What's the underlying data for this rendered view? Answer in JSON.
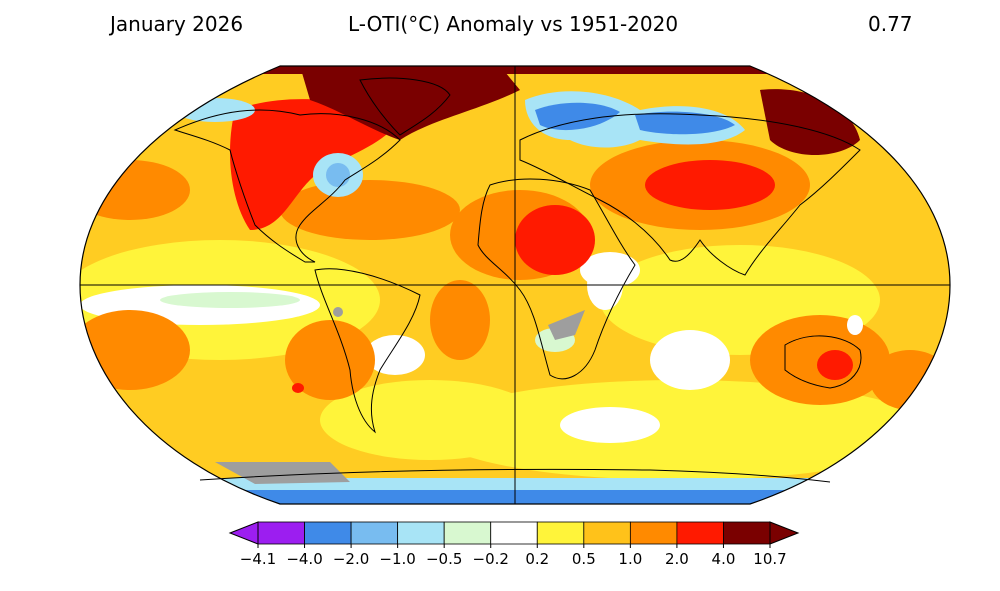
{
  "header": {
    "date": "January 2026",
    "title": "L-OTI(°C) Anomaly vs 1951-2020",
    "global_mean": "0.77"
  },
  "legend": {
    "ticks": [
      "−4.1",
      "−4.0",
      "−2.0",
      "−1.0",
      "−0.5",
      "−0.2",
      "0.2",
      "0.5",
      "1.0",
      "2.0",
      "4.0",
      "10.7"
    ],
    "colors": [
      "#9c1ef0",
      "#3f8ae8",
      "#78bcf0",
      "#a8e4f6",
      "#d8f8d0",
      "#ffffff",
      "#fff43a",
      "#ffc21a",
      "#ff8a00",
      "#ff1a00",
      "#7a0000"
    ],
    "below_color": "#9c1ef0",
    "above_color": "#7a0000"
  },
  "map": {
    "projection": "Robinson",
    "missing_data_color": "#9e9e9e",
    "base_color": "#ffcc22"
  }
}
